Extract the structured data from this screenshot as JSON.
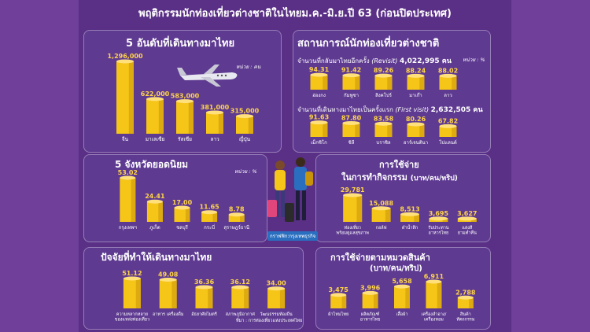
{
  "page": {
    "title": "พฤติกรรมนักท่องเที่ยวต่างชาติในไทยม.ค.-มิ.ย.ปี 63 (ก่อนปิดประเทศ)",
    "unit_people": "หน่วย : คน",
    "unit_percent": "หน่วย : %",
    "source_credit": "กราฟฟิก:กรุงเทพธุรกิจ",
    "source_note": "ที่มา : การท่องเที่ยวแห่งประเทศไทย"
  },
  "colors": {
    "background": "#5a2f86",
    "coin": "#f5c518",
    "coin_dark": "#c8940a",
    "text": "#ffffff",
    "accent": "#ffd447"
  },
  "chart_data": [
    {
      "id": "top_origin",
      "type": "bar",
      "title": "5 อันดับที่เดินทางมาไทย",
      "unit": "หน่วย : คน",
      "categories": [
        "จีน",
        "มาเลเซีย",
        "รัสเซีย",
        "ลาว",
        "ญี่ปุ่น"
      ],
      "values": [
        1296000,
        622000,
        583000,
        381000,
        315000
      ],
      "labels": [
        "1,296,000",
        "622,000",
        "583,000",
        "381,000",
        "315,000"
      ],
      "ylim": [
        0,
        1296000
      ]
    },
    {
      "id": "revisit",
      "type": "bar",
      "title": "สถานการณ์นักท่องเที่ยวต่างชาติ",
      "subtitle_prefix": "จำนวนที่กลับมาไทยอีกครั้ง",
      "subtitle_tag": "(Revisit)",
      "subtitle_total": "4,022,995 คน",
      "unit": "หน่วย : %",
      "categories": [
        "ฮ่องกง",
        "กัมพูชา",
        "สิงคโปร์",
        "มาเก๊า",
        "ลาว"
      ],
      "values": [
        94.31,
        91.42,
        89.26,
        88.24,
        88.02
      ],
      "labels": [
        "94.31",
        "91.42",
        "89.26",
        "88.24",
        "88.02"
      ],
      "ylim": [
        0,
        100
      ]
    },
    {
      "id": "first_visit",
      "type": "bar",
      "subtitle_prefix": "จำนวนที่เดินทางมาไทยเป็นครั้งแรก",
      "subtitle_tag": "(First visit)",
      "subtitle_total": "2,632,505 คน",
      "categories": [
        "เม็กซิโก",
        "ชิลี",
        "บราซิล",
        "อาร์เจนตินา",
        "โปแลนด์"
      ],
      "values": [
        91.63,
        87.8,
        83.58,
        80.26,
        67.82
      ],
      "labels": [
        "91.63",
        "87.80",
        "83.58",
        "80.26",
        "67.82"
      ],
      "ylim": [
        0,
        100
      ]
    },
    {
      "id": "top_provinces",
      "type": "bar",
      "title": "5 จังหวัดยอดนิยม",
      "unit": "หน่วย : %",
      "categories": [
        "กรุงเทพฯ",
        "ภูเก็ต",
        "ชลบุรี",
        "กระบี่",
        "สุราษฎร์ธานี"
      ],
      "values": [
        53.02,
        24.41,
        17.0,
        11.65,
        8.78
      ],
      "labels": [
        "53.02",
        "24.41",
        "17.00",
        "11.65",
        "8.78"
      ],
      "ylim": [
        0,
        53.02
      ]
    },
    {
      "id": "spending_activity",
      "type": "bar",
      "title_line1": "การใช้จ่าย",
      "title_line2": "ในการทำกิจกรรม",
      "title_suffix": "(บาท/คน/ทริป)",
      "categories": [
        "ท่องเที่ยว\nพร้อมดูแลสุขภาพ",
        "กอล์ฟ",
        "ดำน้ำลึก",
        "รับประทาน\nอาหารไทย",
        "แสงสี\nยามค่ำคืน"
      ],
      "values": [
        29781,
        15088,
        8513,
        3695,
        3627
      ],
      "labels": [
        "29,781",
        "15,088",
        "8,513",
        "3,695",
        "3,627"
      ],
      "ylim": [
        0,
        29781
      ]
    },
    {
      "id": "travel_factors",
      "type": "bar",
      "title": "ปัจจัยที่ทำให้เดินทางมาไทย",
      "categories": [
        "ความหลากหลาย\nของแหล่งท่องเที่ยว",
        "อาหาร เครื่องดื่ม",
        "อัธยาศัยไมตรี",
        "สภาพภูมิอากาศ",
        "วัฒนธรรมท้องถิ่น"
      ],
      "values": [
        51.12,
        49.08,
        36.36,
        36.12,
        34.0
      ],
      "labels": [
        "51.12",
        "49.08",
        "36.36",
        "36.12",
        "34.00"
      ],
      "ylim": [
        0,
        51.12
      ]
    },
    {
      "id": "spending_category",
      "type": "bar",
      "title_line1": "การใช้จ่ายตามหมวดสินค้า",
      "title_line2": "(บาท/คน/ทริป)",
      "categories": [
        "ผ้าไหมไทย",
        "ผลิตภัณฑ์\nอาหารไทย",
        "เสื้อผ้า",
        "เครื่องสำอาง/\nเครื่องหอม",
        "สินค้า\nหัตถกรรม"
      ],
      "values": [
        3475,
        3996,
        5658,
        6911,
        2788
      ],
      "labels": [
        "3,475",
        "3,996",
        "5,658",
        "6,911",
        "2,788"
      ],
      "ylim": [
        0,
        6911
      ]
    }
  ]
}
